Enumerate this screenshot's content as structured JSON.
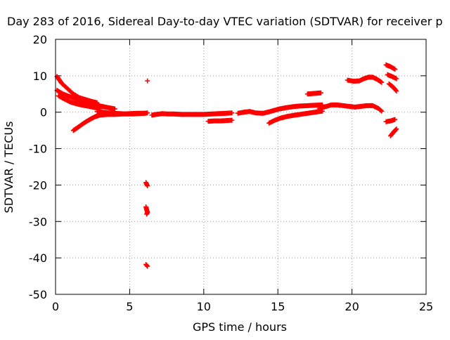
{
  "chart_data": {
    "type": "scatter",
    "title": "Day 283 of 2016, Sidereal Day-to-day VTEC variation (SDTVAR) for receiver p",
    "xlabel": "GPS time / hours",
    "ylabel": "SDTVAR / TECUs",
    "xlim": [
      0,
      25
    ],
    "ylim": [
      -50,
      20
    ],
    "xticks": [
      0,
      5,
      10,
      15,
      20,
      25
    ],
    "yticks": [
      -50,
      -40,
      -30,
      -20,
      -10,
      0,
      10,
      20
    ],
    "grid": true,
    "legend": "none",
    "marker": "plus",
    "color": "#ff0000",
    "series": [
      {
        "tracks": [
          {
            "x": [
              0.1,
              0.4,
              0.8,
              1.2,
              1.6,
              2.0,
              2.4,
              2.8
            ],
            "y": [
              9.8,
              8.0,
              6.5,
              5.0,
              4.0,
              3.5,
              3.0,
              2.6
            ]
          },
          {
            "x": [
              0.1,
              0.5,
              1.0,
              1.5,
              2.0,
              2.5,
              3.0,
              3.5,
              4.0
            ],
            "y": [
              6.0,
              5.0,
              4.2,
              3.5,
              2.8,
              2.2,
              1.7,
              1.3,
              0.9
            ]
          },
          {
            "x": [
              0.2,
              0.6,
              1.0,
              1.5,
              2.0,
              2.5,
              3.0
            ],
            "y": [
              4.5,
              3.6,
              2.8,
              2.2,
              1.8,
              1.4,
              1.0
            ]
          },
          {
            "x": [
              1.2,
              1.5,
              1.8,
              2.1,
              2.4,
              2.7,
              3.0,
              3.5,
              4.0,
              4.5,
              5.0,
              5.5,
              6.0,
              6.2
            ],
            "y": [
              -5.0,
              -4.2,
              -3.3,
              -2.5,
              -1.8,
              -1.2,
              -0.8,
              -0.6,
              -0.6,
              -0.5,
              -0.4,
              -0.3,
              -0.3,
              -0.2
            ]
          },
          {
            "x": [
              2.8,
              3.2,
              3.6,
              4.0,
              4.4,
              4.8,
              5.2,
              5.6,
              6.0
            ],
            "y": [
              0.2,
              0.0,
              -0.2,
              -0.3,
              -0.4,
              -0.5,
              -0.5,
              -0.4,
              -0.3
            ]
          },
          {
            "x": [
              6.5,
              6.8,
              7.2,
              7.6,
              8.0,
              8.5,
              9.0,
              9.5,
              10.0,
              10.5,
              11.0,
              11.5,
              11.9
            ],
            "y": [
              -0.8,
              -0.6,
              -0.4,
              -0.5,
              -0.5,
              -0.6,
              -0.6,
              -0.6,
              -0.6,
              -0.5,
              -0.4,
              -0.3,
              -0.2
            ]
          },
          {
            "x": [
              10.3,
              10.7,
              11.1,
              11.5,
              11.9
            ],
            "y": [
              -2.5,
              -2.4,
              -2.4,
              -2.3,
              -2.2
            ]
          },
          {
            "x": [
              12.3,
              12.7,
              13.1,
              13.5,
              14.0,
              14.5,
              15.0,
              15.5,
              16.0,
              16.5,
              17.0,
              17.5,
              18.0
            ],
            "y": [
              -0.3,
              0.0,
              0.2,
              -0.2,
              -0.3,
              0.2,
              0.8,
              1.2,
              1.5,
              1.7,
              1.8,
              1.9,
              2.0
            ]
          },
          {
            "x": [
              14.4,
              14.8,
              15.2,
              15.6,
              16.0,
              16.5,
              17.0,
              17.5,
              18.0
            ],
            "y": [
              -3.0,
              -2.2,
              -1.6,
              -1.2,
              -0.9,
              -0.6,
              -0.3,
              0.0,
              0.3
            ]
          },
          {
            "x": [
              17.0,
              17.3,
              17.6,
              17.9
            ],
            "y": [
              5.0,
              5.1,
              5.2,
              5.3
            ]
          },
          {
            "x": [
              17.8,
              18.2,
              18.6,
              19.0,
              19.4,
              19.8,
              20.2,
              20.6,
              21.0,
              21.4,
              21.8,
              22.0
            ],
            "y": [
              1.0,
              1.5,
              2.0,
              2.0,
              1.8,
              1.6,
              1.4,
              1.6,
              1.8,
              1.8,
              1.0,
              0.3
            ]
          },
          {
            "x": [
              19.7,
              20.1,
              20.5,
              20.8,
              21.1,
              21.4,
              21.7,
              22.0
            ],
            "y": [
              8.8,
              8.5,
              8.6,
              9.2,
              9.6,
              9.6,
              9.0,
              8.2
            ]
          },
          {
            "x": [
              22.3,
              22.6,
              22.9
            ],
            "y": [
              13.0,
              12.5,
              11.8
            ]
          },
          {
            "x": [
              22.4,
              22.7,
              23.0
            ],
            "y": [
              10.3,
              9.8,
              9.2
            ]
          },
          {
            "x": [
              22.5,
              22.8,
              23.0
            ],
            "y": [
              7.8,
              6.8,
              5.8
            ]
          },
          {
            "x": [
              22.3,
              22.6,
              22.9
            ],
            "y": [
              -2.6,
              -2.4,
              -2.0
            ]
          },
          {
            "x": [
              22.6,
              22.8,
              23.0
            ],
            "y": [
              -6.5,
              -5.5,
              -4.6
            ]
          },
          {
            "x": [
              6.2
            ],
            "y": [
              8.6
            ]
          },
          {
            "x": [
              6.1,
              6.15,
              6.2
            ],
            "y": [
              -19.3,
              -19.8,
              -20.2
            ]
          },
          {
            "x": [
              6.1,
              6.15,
              6.2,
              6.15
            ],
            "y": [
              -26.0,
              -26.8,
              -27.5,
              -28.0
            ]
          },
          {
            "x": [
              6.1,
              6.2
            ],
            "y": [
              -41.8,
              -42.3
            ]
          }
        ]
      }
    ]
  }
}
